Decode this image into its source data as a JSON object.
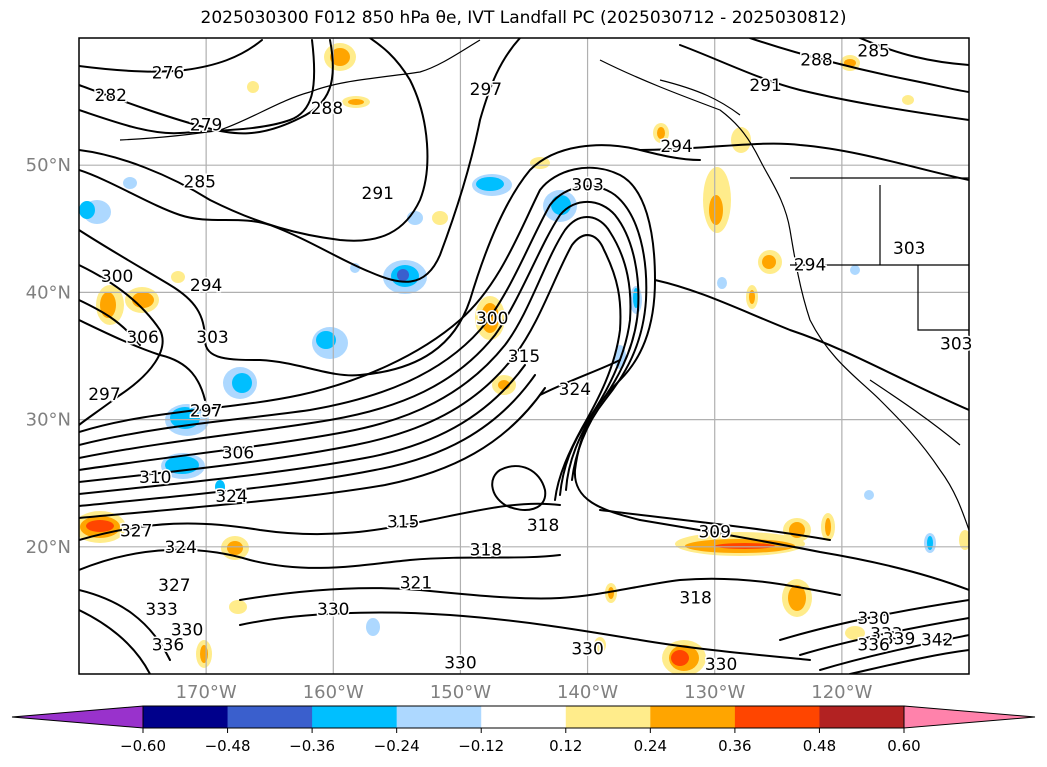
{
  "title": "2025030300 F012 850 hPa θe, IVT Landfall PC (2025030712 - 2025030812)",
  "map": {
    "lat_labels": [
      "50°N",
      "40°N",
      "30°N",
      "20°N"
    ],
    "lon_labels": [
      "170°W",
      "160°W",
      "150°W",
      "140°W",
      "130°W",
      "120°W"
    ],
    "lat_range": [
      10,
      60
    ],
    "lon_range": [
      -180,
      -110
    ],
    "gridlines": true,
    "contour_labels": [
      {
        "text": "276",
        "lon": -173,
        "lat": 57.3
      },
      {
        "text": "282",
        "lon": -177.5,
        "lat": 55.5
      },
      {
        "text": "279",
        "lon": -170,
        "lat": 53.2
      },
      {
        "text": "288",
        "lon": -160.5,
        "lat": 54.5
      },
      {
        "text": "297",
        "lon": -148,
        "lat": 56
      },
      {
        "text": "291",
        "lon": -156.5,
        "lat": 47.8
      },
      {
        "text": "285",
        "lon": -170.5,
        "lat": 48.7
      },
      {
        "text": "300",
        "lon": -177,
        "lat": 41.3
      },
      {
        "text": "294",
        "lon": -170,
        "lat": 40.6
      },
      {
        "text": "306",
        "lon": -175,
        "lat": 36.5
      },
      {
        "text": "303",
        "lon": -169.5,
        "lat": 36.5
      },
      {
        "text": "297",
        "lon": -178,
        "lat": 32
      },
      {
        "text": "297",
        "lon": -170,
        "lat": 30.7
      },
      {
        "text": "306",
        "lon": -167.5,
        "lat": 27.4
      },
      {
        "text": "310",
        "lon": -174,
        "lat": 25.5
      },
      {
        "text": "324",
        "lon": -168,
        "lat": 24
      },
      {
        "text": "300",
        "lon": -147.5,
        "lat": 38
      },
      {
        "text": "315",
        "lon": -145,
        "lat": 35
      },
      {
        "text": "324",
        "lon": -141,
        "lat": 32.4
      },
      {
        "text": "303",
        "lon": -140,
        "lat": 48.5
      },
      {
        "text": "294",
        "lon": -133,
        "lat": 51.5
      },
      {
        "text": "291",
        "lon": -126,
        "lat": 56.3
      },
      {
        "text": "288",
        "lon": -122,
        "lat": 58.3
      },
      {
        "text": "285",
        "lon": -117.5,
        "lat": 59
      },
      {
        "text": "294",
        "lon": -122.5,
        "lat": 42.2
      },
      {
        "text": "303",
        "lon": -114.7,
        "lat": 43.5
      },
      {
        "text": "303",
        "lon": -111,
        "lat": 36
      },
      {
        "text": "315",
        "lon": -154.5,
        "lat": 22
      },
      {
        "text": "318",
        "lon": -143.5,
        "lat": 21.7
      },
      {
        "text": "318",
        "lon": -148,
        "lat": 19.8
      },
      {
        "text": "321",
        "lon": -153.5,
        "lat": 17.2
      },
      {
        "text": "309",
        "lon": -130,
        "lat": 21.2
      },
      {
        "text": "318",
        "lon": -131.5,
        "lat": 16
      },
      {
        "text": "330",
        "lon": -160,
        "lat": 15.1
      },
      {
        "text": "330",
        "lon": -150,
        "lat": 10.9
      },
      {
        "text": "330",
        "lon": -140,
        "lat": 12
      },
      {
        "text": "330",
        "lon": -129.5,
        "lat": 10.8
      },
      {
        "text": "327",
        "lon": -175.5,
        "lat": 21.3
      },
      {
        "text": "324",
        "lon": -172,
        "lat": 20
      },
      {
        "text": "327",
        "lon": -172.5,
        "lat": 17
      },
      {
        "text": "333",
        "lon": -173.5,
        "lat": 15.1
      },
      {
        "text": "336",
        "lon": -173,
        "lat": 12.3
      },
      {
        "text": "330",
        "lon": -171.5,
        "lat": 13.5
      },
      {
        "text": "330",
        "lon": -117.5,
        "lat": 14.4
      },
      {
        "text": "333",
        "lon": -116.5,
        "lat": 13.2
      },
      {
        "text": "339",
        "lon": -115.5,
        "lat": 12.8
      },
      {
        "text": "336",
        "lon": -117.5,
        "lat": 12.3
      },
      {
        "text": "342",
        "lon": -112.5,
        "lat": 12.7
      }
    ]
  },
  "colorbar": {
    "ticks": [
      "−0.60",
      "−0.48",
      "−0.36",
      "−0.24",
      "−0.12",
      "0.12",
      "0.24",
      "0.36",
      "0.48",
      "0.60"
    ],
    "colors": [
      "#9932cc",
      "#00008b",
      "#3a5fcd",
      "#00bfff",
      "#add8ff",
      "#ffffff",
      "#ffec8b",
      "#ffa500",
      "#ff4500",
      "#b22222",
      "#ff82ab"
    ]
  }
}
